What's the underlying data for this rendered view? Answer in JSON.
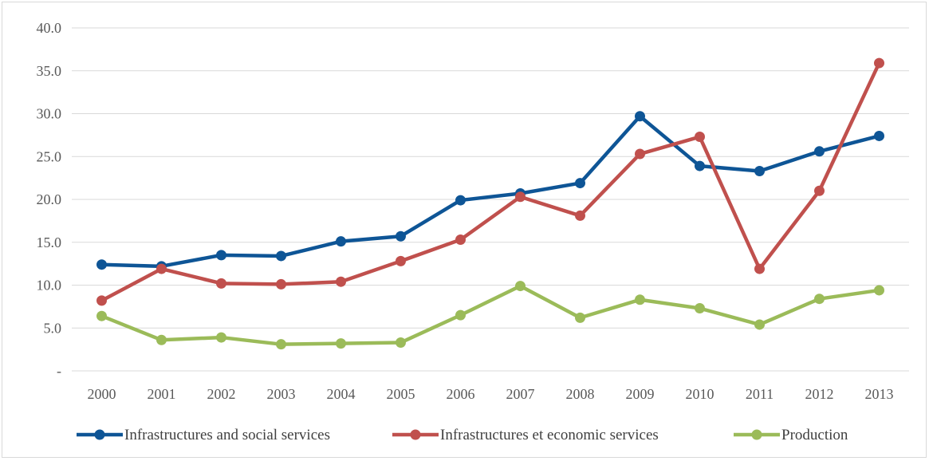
{
  "chart_data": {
    "type": "line",
    "categories": [
      "2000",
      "2001",
      "2002",
      "2003",
      "2004",
      "2005",
      "2006",
      "2007",
      "2008",
      "2009",
      "2010",
      "2011",
      "2012",
      "2013"
    ],
    "series": [
      {
        "name": "Infrastructures and social services",
        "color": "#0e5596",
        "values": [
          12.4,
          12.2,
          13.5,
          13.4,
          15.1,
          15.7,
          19.9,
          20.7,
          21.9,
          29.7,
          23.9,
          23.3,
          25.6,
          27.4
        ]
      },
      {
        "name": "Infrastructures et economic services",
        "color": "#c0504d",
        "values": [
          8.2,
          11.9,
          10.2,
          10.1,
          10.4,
          12.8,
          15.3,
          20.3,
          18.1,
          25.3,
          27.3,
          11.9,
          21.0,
          35.9
        ]
      },
      {
        "name": "Production",
        "color": "#9bbb59",
        "values": [
          6.4,
          3.6,
          3.9,
          3.1,
          3.2,
          3.3,
          6.5,
          9.9,
          6.2,
          8.3,
          7.3,
          5.4,
          8.4,
          9.4
        ]
      }
    ],
    "y_ticks": [
      "-",
      "5.0",
      "10.0",
      "15.0",
      "20.0",
      "25.0",
      "30.0",
      "35.0",
      "40.0"
    ],
    "ylim": [
      0,
      40
    ],
    "grid": true,
    "legend_position": "bottom"
  }
}
